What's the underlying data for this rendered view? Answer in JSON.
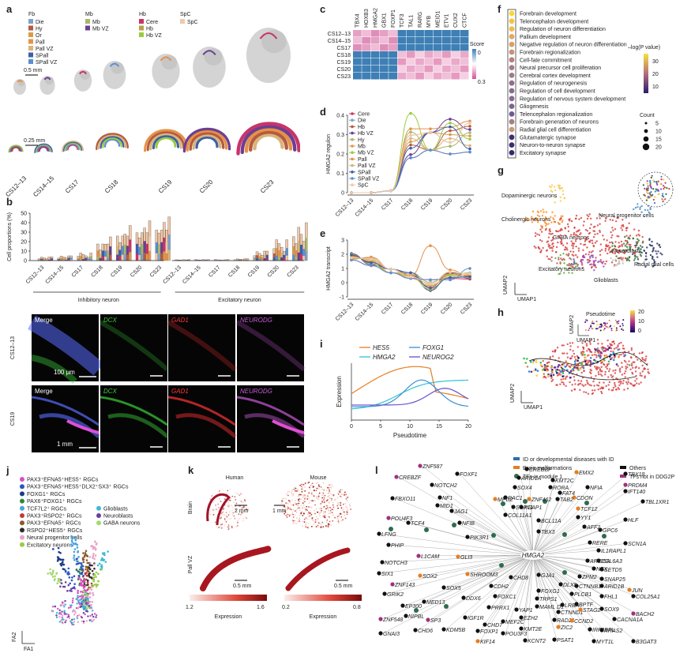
{
  "panels": {
    "a": {
      "label": "a",
      "legend_groups": [
        {
          "title": "Fb",
          "items": [
            {
              "name": "Die",
              "color": "#7ea3c9"
            },
            {
              "name": "Hy",
              "color": "#b55a3e"
            },
            {
              "name": "Or",
              "color": "#d79b4b"
            },
            {
              "name": "Pall",
              "color": "#e6914a"
            },
            {
              "name": "Pall VZ",
              "color": "#d9b57b"
            },
            {
              "name": "SPall",
              "color": "#3c5fa8"
            },
            {
              "name": "SPall VZ",
              "color": "#5b8fd1"
            }
          ]
        },
        {
          "title": "Mb",
          "items": [
            {
              "name": "Mb",
              "color": "#a8b86a"
            },
            {
              "name": "Mb VZ",
              "color": "#6b3f91"
            }
          ]
        },
        {
          "title": "Hb",
          "items": [
            {
              "name": "Cere",
              "color": "#c8346a"
            },
            {
              "name": "Hb",
              "color": "#b5a24a"
            },
            {
              "name": "Hb VZ",
              "color": "#9acb3f"
            }
          ]
        },
        {
          "title": "SpC",
          "items": [
            {
              "name": "SpC",
              "color": "#f2c9a8"
            }
          ]
        }
      ],
      "scale_top": "0.5 mm",
      "scale_bottom": "0.25 mm",
      "stages": [
        "CS12–13",
        "CS14–15",
        "CS17",
        "CS18",
        "CS19",
        "CS20",
        "CS23"
      ]
    },
    "b": {
      "label": "b",
      "ylabel": "Cell proportions (%)",
      "group_labels": [
        "Inhibitory neuron",
        "Excitatory neuron"
      ],
      "chart_data": {
        "type": "bar",
        "ylim": [
          0,
          50
        ],
        "yticks": [
          "0",
          "10",
          "20",
          "30",
          "40",
          "50"
        ],
        "categories": [
          "CS12–13",
          "CS14–15",
          "CS17",
          "CS18",
          "CS19",
          "CS20",
          "CS23",
          "CS12–13",
          "CS14–15",
          "CS17",
          "CS18",
          "CS19",
          "CS20",
          "CS23"
        ],
        "values_max": [
          4,
          5,
          8,
          25,
          37,
          42,
          46,
          1,
          1,
          1,
          2,
          10,
          22,
          40
        ]
      }
    },
    "b_micro": {
      "row_labels": [
        "CS12–13",
        "CS19"
      ],
      "col_labels": [
        "Merge",
        "DCX",
        "GAD1",
        "NEURODG"
      ],
      "scale_1": "100 μm",
      "scale_2": "1 mm"
    },
    "c": {
      "label": "c",
      "genes": [
        "TBX4",
        "HOXB3",
        "HMGA2",
        "GBX1",
        "FOXP1",
        "TCF3",
        "TAL1",
        "RARG",
        "MYB",
        "MEID1",
        "ETV1",
        "CUX2",
        "CTCF"
      ],
      "stages": [
        "CS12–13",
        "CS14–15",
        "CS17",
        "CS18",
        "CS19",
        "CS20",
        "CS23"
      ],
      "score_label": "Score",
      "score_max": "0",
      "score_min": "0.3"
    },
    "d": {
      "label": "d",
      "ylabel": "HMGA2 regulon",
      "legend": [
        "Cere",
        "Die",
        "Hb",
        "Hb VZ",
        "Hy",
        "Mb",
        "Mb VZ",
        "Pall",
        "Pall VZ",
        "SPall",
        "SPall VZ",
        "SpC"
      ],
      "chart_data": {
        "type": "line",
        "ylim": [
          0,
          0.4
        ],
        "yticks": [
          "0",
          "0.1",
          "0.2",
          "0.3",
          "0.4"
        ],
        "x": [
          "CS12–13",
          "CS14–15",
          "CS17",
          "CS18",
          "CS19",
          "CS20",
          "CS23"
        ]
      }
    },
    "e": {
      "label": "e",
      "ylabel": "HMGA2 transcript",
      "chart_data": {
        "type": "line",
        "ylim": [
          -1,
          3
        ],
        "yticks": [
          "-1",
          "0",
          "1",
          "2",
          "3"
        ],
        "x": [
          "CS12–13",
          "CS14–15",
          "CS17",
          "CS18",
          "CS19",
          "CS20",
          "CS23"
        ]
      }
    },
    "f": {
      "label": "f",
      "terms": [
        "Forebrain development",
        "Telencephalon development",
        "Regulation of neuron differentiation",
        "Pallium development",
        "Negative regulation of neuron differentiation",
        "Forebrain regionalization",
        "Cell-fate commitment",
        "Neural precursor cell proliferation",
        "Cerebral cortex development",
        "Regulation of neurogenesis",
        "Regulation of cell development",
        "Regulation of nervous system development",
        "Gliogenesis",
        "Telencephalon regionalization",
        "Forebrain generation of neurons",
        "Radial glial cell differentiation",
        "Glutamatergic synapse",
        "Neuron-to-neuron synapse",
        "Excitatory synapse"
      ],
      "colorbar_title": "–log(P value)",
      "colorbar_ticks": [
        "30",
        "20",
        "10"
      ],
      "count_title": "Count",
      "count_ticks": [
        "5",
        "10",
        "15",
        "20"
      ]
    },
    "g": {
      "label": "g",
      "clusters": [
        "Dopaminergic neurons",
        "Cholinergic neurons",
        "Neural progenitor cells",
        "GABA neurons",
        "Neuroblasts",
        "Excitatory neurons",
        "Radial glial cells",
        "Glioblasts"
      ],
      "x_axis": "UMAP1",
      "y_axis": "UMAP2"
    },
    "h": {
      "label": "h",
      "title": "Pseudotime",
      "ticks": [
        "20",
        "10",
        "0"
      ],
      "x_axis": "UMAP1",
      "y_axis": "UMAP2"
    },
    "i": {
      "label": "i",
      "legend": [
        "HES5",
        "HMGA2",
        "FOXG1",
        "NEUROG2"
      ],
      "xlabel": "Pseudotime",
      "ylabel": "Expression",
      "xticks": [
        "0",
        "5",
        "10",
        "15",
        "20"
      ]
    },
    "j": {
      "label": "j",
      "legend": [
        "PAX3⁺EFNA5⁺HES5⁺ RGCs",
        "PAX3⁺EFNA5⁺HES5⁺DLX2⁺SX3⁺ RGCs",
        "FOXG1⁺ RGCs",
        "PAX6⁺FOXG1⁺ RGCs",
        "TCF7L2⁺ RGCs",
        "PAX3⁺RSPO2⁺ RGCs",
        "PAX3⁺EFNA5⁺ RGCs",
        "RSPO2⁺HES5⁺ RGCs",
        "Neural progenitor cells",
        "Excitatory neurons",
        "Glioblasts",
        "Neuroblasts",
        "GABA neurons"
      ],
      "x_axis": "FA1",
      "y_axis": "FA2"
    },
    "k": {
      "label": "k",
      "cols": [
        "Human",
        "Mouse"
      ],
      "rows": [
        "Brain",
        "Pall VZ"
      ],
      "scale_a": "2 mm",
      "scale_b": "1 mm",
      "scale_c": "0.5 mm",
      "scale_d": "0.5 mm",
      "bar1_min": "1.2",
      "bar1_max": "1.6",
      "bar2_min": "0.2",
      "bar2_max": "0.8",
      "expr_label": "Expression"
    },
    "l": {
      "label": "l",
      "legend": [
        "ID or developmental diseases with ID",
        "Brain malformations",
        "TFs in module 1",
        "Others",
        "TFs not in DDG2P"
      ],
      "center": "HMGA2"
    }
  }
}
